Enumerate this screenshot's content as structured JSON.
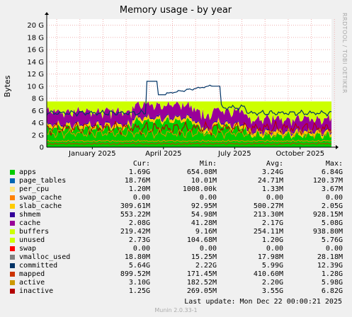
{
  "chart_data": {
    "type": "area",
    "title": "Memory usage - by year",
    "ylabel": "Bytes",
    "side_text": "RRDTOOL / TOBI OETIKER",
    "ylim": [
      0,
      21
    ],
    "y_ticks": [
      "0",
      "2 G",
      "4 G",
      "6 G",
      "8 G",
      "10 G",
      "12 G",
      "14 G",
      "16 G",
      "18 G",
      "20 G"
    ],
    "y_tick_values": [
      0,
      2,
      4,
      6,
      8,
      10,
      12,
      14,
      16,
      18,
      20
    ],
    "x_ticks": [
      "January 2025",
      "April 2025",
      "July 2025",
      "October 2025"
    ],
    "x_tick_positions": [
      0.16,
      0.41,
      0.66,
      0.89
    ],
    "x_range_months": [
      "2024-12",
      "2025-12"
    ],
    "stack_estimate_G": {
      "apps": 3.2,
      "page_tables": 0.03,
      "per_cpu": 0.0,
      "swap_cache": 0.0,
      "slab_cache": 0.5,
      "shmem": 0.2,
      "cache": 2.2,
      "buffers": 0.25,
      "unused": 1.2
    },
    "committed_line_note": "peaks ~10.8 G in April and ~10 G in July"
  },
  "legend": {
    "headers": [
      "Cur:",
      "Min:",
      "Avg:",
      "Max:"
    ],
    "rows": [
      {
        "name": "apps",
        "color": "#00cc00",
        "cur": "1.69G",
        "min": "654.08M",
        "avg": "3.24G",
        "max": "6.84G"
      },
      {
        "name": "page_tables",
        "color": "#0066b3",
        "cur": "18.76M",
        "min": "10.01M",
        "avg": "24.71M",
        "max": "120.37M"
      },
      {
        "name": "per_cpu",
        "color": "#ffe680",
        "cur": "1.20M",
        "min": "1008.00k",
        "avg": "1.33M",
        "max": "3.67M"
      },
      {
        "name": "swap_cache",
        "color": "#ff8000",
        "cur": "0.00",
        "min": "0.00",
        "avg": "0.00",
        "max": "0.00"
      },
      {
        "name": "slab_cache",
        "color": "#ffcc00",
        "cur": "309.61M",
        "min": "92.95M",
        "avg": "500.27M",
        "max": "2.05G"
      },
      {
        "name": "shmem",
        "color": "#330099",
        "cur": "553.22M",
        "min": "54.98M",
        "avg": "213.30M",
        "max": "928.15M"
      },
      {
        "name": "cache",
        "color": "#990099",
        "cur": "2.08G",
        "min": "41.28M",
        "avg": "2.17G",
        "max": "5.08G"
      },
      {
        "name": "buffers",
        "color": "#ccff00",
        "cur": "219.42M",
        "min": "9.16M",
        "avg": "254.11M",
        "max": "938.80M"
      },
      {
        "name": "unused",
        "color": "#ccff00",
        "cur": "2.73G",
        "min": "104.68M",
        "avg": "1.20G",
        "max": "5.76G"
      },
      {
        "name": "swap",
        "color": "#ff0000",
        "cur": "0.00",
        "min": "0.00",
        "avg": "0.00",
        "max": "0.00"
      },
      {
        "name": "vmalloc_used",
        "color": "#808080",
        "cur": "18.80M",
        "min": "15.25M",
        "avg": "17.98M",
        "max": "28.18M"
      },
      {
        "name": "committed",
        "color": "#003366",
        "cur": "5.64G",
        "min": "2.22G",
        "avg": "5.99G",
        "max": "12.39G"
      },
      {
        "name": "mapped",
        "color": "#cc3300",
        "cur": "899.52M",
        "min": "171.45M",
        "avg": "410.60M",
        "max": "1.28G"
      },
      {
        "name": "active",
        "color": "#cc9900",
        "cur": "3.10G",
        "min": "182.52M",
        "avg": "2.20G",
        "max": "5.98G"
      },
      {
        "name": "inactive",
        "color": "#b30000",
        "cur": "1.25G",
        "min": "269.05M",
        "avg": "3.55G",
        "max": "6.82G"
      }
    ]
  },
  "last_update": "Last update:  Mon Dec 22 00:00:21 2025",
  "footer": "Munin 2.0.33-1"
}
